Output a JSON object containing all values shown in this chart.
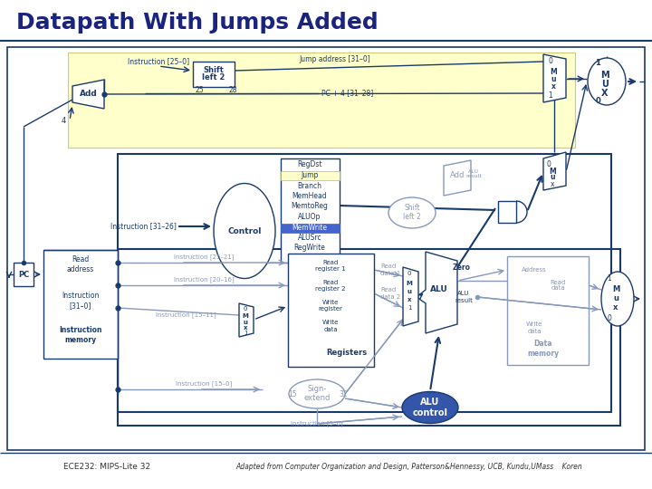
{
  "title": "Datapath With Jumps Added",
  "title_color": "#1a237e",
  "title_fontsize": 18,
  "footer_left": "ECE232: MIPS-Lite 32",
  "footer_right": "Adapted from Computer Organization and Design, Patterson&Hennessy, UCB, Kundu,UMass    Koren",
  "bg_color": "#ffffff",
  "highlight_color": "#ffffcc",
  "dc": "#1a3a6b",
  "lc": "#8899bb",
  "blue_fill": "#3355aa"
}
